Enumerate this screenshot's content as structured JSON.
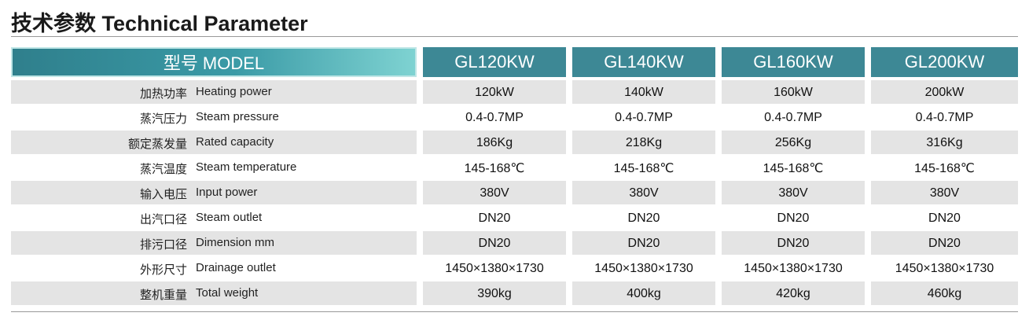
{
  "title": "技术参数 Technical Parameter",
  "table": {
    "header": {
      "label": "型号 MODEL",
      "models": [
        "GL120KW",
        "GL140KW",
        "GL160KW",
        "GL200KW"
      ]
    },
    "rows": [
      {
        "cn": "加热功率",
        "en": "Heating power",
        "values": [
          "120kW",
          "140kW",
          "160kW",
          "200kW"
        ]
      },
      {
        "cn": "蒸汽压力",
        "en": "Steam pressure",
        "values": [
          "0.4-0.7MP",
          "0.4-0.7MP",
          "0.4-0.7MP",
          "0.4-0.7MP"
        ]
      },
      {
        "cn": "额定蒸发量",
        "en": "Rated capacity",
        "values": [
          "186Kg",
          "218Kg",
          "256Kg",
          "316Kg"
        ]
      },
      {
        "cn": "蒸汽温度",
        "en": "Steam temperature",
        "values": [
          "145-168℃",
          "145-168℃",
          "145-168℃",
          "145-168℃"
        ]
      },
      {
        "cn": "输入电压",
        "en": "Input power",
        "values": [
          "380V",
          "380V",
          "380V",
          "380V"
        ]
      },
      {
        "cn": "出汽口径",
        "en": "Steam outlet",
        "values": [
          "DN20",
          "DN20",
          "DN20",
          "DN20"
        ]
      },
      {
        "cn": "排污口径",
        "en": "Dimension mm",
        "values": [
          "DN20",
          "DN20",
          "DN20",
          "DN20"
        ]
      },
      {
        "cn": "外形尺寸",
        "en": "Drainage outlet",
        "values": [
          "1450×1380×1730",
          "1450×1380×1730",
          "1450×1380×1730",
          "1450×1380×1730"
        ]
      },
      {
        "cn": "整机重量",
        "en": "Total weight",
        "values": [
          "390kg",
          "400kg",
          "420kg",
          "460kg"
        ]
      }
    ]
  }
}
